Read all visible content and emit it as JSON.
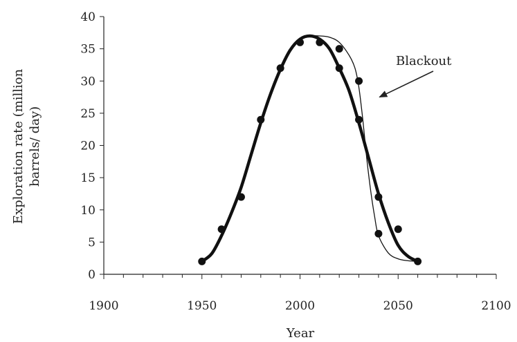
{
  "chart_data": {
    "type": "scatter",
    "title": "",
    "xlabel": "Year",
    "ylabel_lines": [
      "Exploration rate (million",
      "barrels/ day)"
    ],
    "xlim": [
      1900,
      2100
    ],
    "ylim": [
      0,
      40
    ],
    "x_ticks": [
      1900,
      1950,
      2000,
      2050,
      2100
    ],
    "y_ticks": [
      0,
      5,
      10,
      15,
      20,
      25,
      30,
      35,
      40
    ],
    "x_minor_step": 10,
    "grid": false,
    "points": {
      "x": [
        1950,
        1960,
        1970,
        1980,
        1990,
        2000,
        2010,
        2020,
        2020,
        2030,
        2030,
        2040,
        2040,
        2050,
        2060
      ],
      "y": [
        2,
        7,
        12,
        24,
        32,
        36,
        36,
        35,
        32,
        30,
        24,
        12,
        6.3,
        7,
        2
      ]
    },
    "curves": [
      {
        "style": "thick",
        "x": [
          1950,
          1955,
          1960,
          1965,
          1970,
          1975,
          1980,
          1985,
          1990,
          1995,
          2000,
          2005,
          2010,
          2015,
          2020,
          2025,
          2030,
          2035,
          2040,
          2045,
          2050,
          2055,
          2060
        ],
        "y": [
          2,
          3.2,
          6,
          9.5,
          13.5,
          18.5,
          23.5,
          28,
          31.8,
          34.8,
          36.5,
          37,
          36.5,
          35,
          32,
          28.5,
          23.5,
          18,
          12.5,
          8,
          4.5,
          2.8,
          2
        ]
      },
      {
        "style": "thin",
        "x": [
          1950,
          1955,
          1960,
          1965,
          1970,
          1975,
          1980,
          1985,
          1990,
          1995,
          2000,
          2005,
          2010,
          2015,
          2020,
          2025,
          2028,
          2030,
          2032,
          2034,
          2036,
          2038,
          2040,
          2045,
          2050,
          2055,
          2060
        ],
        "y": [
          2,
          3.2,
          6,
          9.5,
          13.5,
          18.5,
          23.5,
          28,
          31.8,
          34.8,
          36.5,
          37,
          37,
          36.8,
          36,
          34,
          32,
          29,
          24,
          18,
          13,
          9,
          6,
          3.3,
          2.4,
          2.1,
          2
        ]
      }
    ],
    "annotation": {
      "text": "Blackout",
      "arrow_to": [
        2038,
        27.5
      ]
    },
    "legend": "none"
  }
}
